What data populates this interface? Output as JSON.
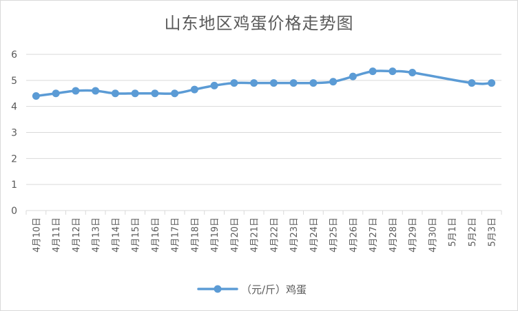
{
  "chart_data": {
    "type": "line",
    "title": "山东地区鸡蛋价格走势图",
    "categories": [
      "4月10日",
      "4月11日",
      "4月12日",
      "4月13日",
      "4月14日",
      "4月15日",
      "4月16日",
      "4月17日",
      "4月18日",
      "4月19日",
      "4月20日",
      "4月21日",
      "4月22日",
      "4月23日",
      "4月24日",
      "4月25日",
      "4月26日",
      "4月27日",
      "4月28日",
      "4月29日",
      "4月30日",
      "5月1日",
      "5月2日",
      "5月3日"
    ],
    "series": [
      {
        "name": "（元/斤）鸡蛋",
        "values": [
          4.4,
          4.5,
          4.6,
          4.6,
          4.5,
          4.5,
          4.5,
          4.5,
          4.65,
          4.8,
          4.9,
          4.9,
          4.9,
          4.9,
          4.9,
          4.95,
          5.15,
          5.35,
          5.35,
          5.3,
          null,
          null,
          4.9,
          4.9
        ]
      }
    ],
    "ylim": [
      0,
      6
    ],
    "yticks": [
      0,
      1,
      2,
      3,
      4,
      5,
      6
    ],
    "grid": true,
    "legend_position": "bottom",
    "colors": {
      "line": "#5b9bd5",
      "grid": "#d9d9d9",
      "text": "#595959"
    },
    "line_style": "smooth-with-markers",
    "gaps": "connect"
  }
}
